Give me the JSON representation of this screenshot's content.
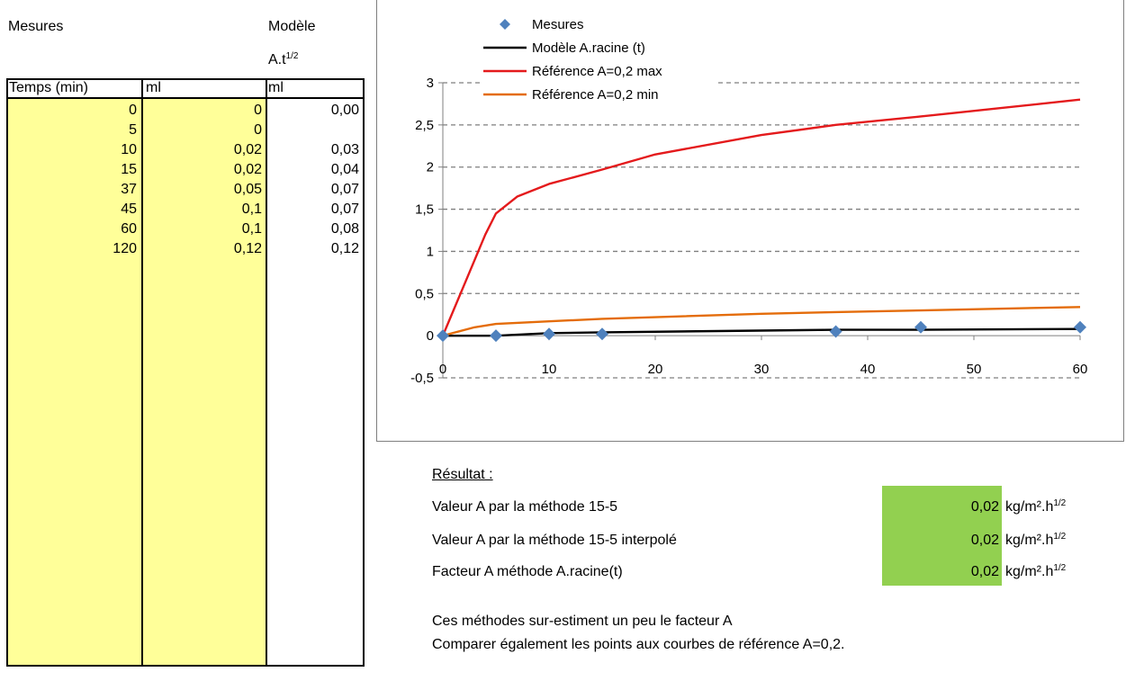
{
  "sheet": {
    "label_mesures": "Mesures",
    "label_modele_1": "Modèle",
    "label_modele_2": "A.t",
    "label_modele_sup": "1/2",
    "headers": [
      "Temps (min)",
      "ml",
      "ml"
    ],
    "rows": [
      {
        "t": "0",
        "ml": "0",
        "model": "0,00"
      },
      {
        "t": "5",
        "ml": "0",
        "model": ""
      },
      {
        "t": "10",
        "ml": "0,02",
        "model": "0,03"
      },
      {
        "t": "15",
        "ml": "0,02",
        "model": "0,04"
      },
      {
        "t": "37",
        "ml": "0,05",
        "model": "0,07"
      },
      {
        "t": "45",
        "ml": "0,1",
        "model": "0,07"
      },
      {
        "t": "60",
        "ml": "0,1",
        "model": "0,08"
      },
      {
        "t": "120",
        "ml": "0,12",
        "model": "0,12"
      }
    ]
  },
  "chart_data": {
    "type": "scatter",
    "xlim": [
      0,
      60
    ],
    "ylim": [
      -0.5,
      3
    ],
    "xticks": [
      "0",
      "10",
      "20",
      "30",
      "40",
      "50",
      "60"
    ],
    "yticks": [
      "-0,5",
      "0",
      "0,5",
      "1",
      "1,5",
      "2",
      "2,5",
      "3"
    ],
    "xtick_values": [
      0,
      10,
      20,
      30,
      40,
      50,
      60
    ],
    "ytick_values": [
      -0.5,
      0,
      0.5,
      1,
      1.5,
      2,
      2.5,
      3
    ],
    "grid": "horizontal dashed",
    "legend_position": "top-left inside",
    "series": [
      {
        "name": "Mesures",
        "kind": "markers",
        "marker": "diamond",
        "color": "#4f81bd",
        "x": [
          0,
          5,
          10,
          15,
          37,
          45,
          60
        ],
        "y": [
          0,
          0,
          0.02,
          0.02,
          0.05,
          0.1,
          0.1
        ]
      },
      {
        "name": "Modèle A.racine (t)",
        "kind": "line",
        "color": "#000000",
        "x": [
          0,
          5,
          10,
          15,
          37,
          45,
          60
        ],
        "y": [
          0,
          0,
          0.03,
          0.04,
          0.07,
          0.07,
          0.08
        ]
      },
      {
        "name": "Référence A=0,2 max",
        "kind": "line",
        "color": "#e41a1c",
        "x": [
          0,
          2,
          4,
          5,
          7,
          10,
          15,
          20,
          30,
          37,
          45,
          60
        ],
        "y": [
          0,
          0.6,
          1.2,
          1.45,
          1.65,
          1.8,
          1.97,
          2.15,
          2.38,
          2.5,
          2.6,
          2.8
        ]
      },
      {
        "name": "Référence A=0,2 min",
        "kind": "line",
        "color": "#e46c0a",
        "x": [
          0,
          3,
          5,
          10,
          15,
          20,
          30,
          37,
          45,
          60
        ],
        "y": [
          0,
          0.1,
          0.14,
          0.17,
          0.2,
          0.22,
          0.26,
          0.28,
          0.3,
          0.34
        ]
      }
    ]
  },
  "results": {
    "title": "Résultat :",
    "rows": [
      {
        "label": "Valeur A par la méthode 15-5",
        "value": "0,02",
        "unit": "kg/m².h",
        "unit_sup": "1/2"
      },
      {
        "label": "Valeur A par la méthode 15-5 interpolé",
        "value": "0,02",
        "unit": "kg/m².h",
        "unit_sup": "1/2"
      },
      {
        "label": "Facteur A méthode A.racine(t)",
        "value": "0,02",
        "unit": "kg/m².h",
        "unit_sup": "1/2"
      }
    ],
    "note_1": "Ces méthodes sur-estiment un peu le facteur A",
    "note_2": "Comparer également les points aux courbes de référence A=0,2.",
    "colors": {
      "result_fill": "#92d050",
      "input_fill": "#ffff99"
    }
  }
}
